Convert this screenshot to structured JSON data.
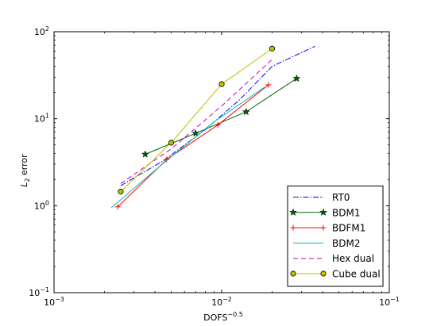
{
  "chart_data": {
    "type": "line",
    "xscale": "log",
    "yscale": "log",
    "xlim": [
      0.001,
      0.1
    ],
    "ylim": [
      0.1,
      100
    ],
    "xticks": [
      {
        "value": 0.001,
        "base": "10",
        "exp": "−3"
      },
      {
        "value": 0.01,
        "base": "10",
        "exp": "−2"
      },
      {
        "value": 0.1,
        "base": "10",
        "exp": "−1"
      }
    ],
    "yticks": [
      {
        "value": 0.1,
        "base": "10",
        "exp": "−1"
      },
      {
        "value": 1,
        "base": "10",
        "exp": "0"
      },
      {
        "value": 10,
        "base": "10",
        "exp": "1"
      },
      {
        "value": 100,
        "base": "10",
        "exp": "2"
      }
    ],
    "xlabel": {
      "base": "DOFS",
      "sup": "−0.5"
    },
    "ylabel": {
      "main": "L",
      "sub": "2",
      "rest": " error"
    },
    "grid": false,
    "legend_position": "lower-right",
    "series": [
      {
        "name": "RT0",
        "color": "#0000ff",
        "dash": "7,2,1.5,2",
        "marker": "none",
        "x": [
          0.0025,
          0.0045,
          0.008,
          0.013,
          0.02,
          0.036
        ],
        "y": [
          1.7,
          3.3,
          7.5,
          17,
          40,
          68
        ]
      },
      {
        "name": "BDM1",
        "color": "#006400",
        "dash": "",
        "marker": "star",
        "x": [
          0.0035,
          0.007,
          0.014,
          0.028
        ],
        "y": [
          3.9,
          6.8,
          12,
          29
        ]
      },
      {
        "name": "BDFM1",
        "color": "#ff0000",
        "dash": "",
        "marker": "plus",
        "x": [
          0.0024,
          0.0047,
          0.0095,
          0.019
        ],
        "y": [
          0.97,
          3.4,
          8.5,
          24.5
        ]
      },
      {
        "name": "BDM2",
        "color": "#00bfbf",
        "dash": "",
        "marker": "none",
        "x": [
          0.0022,
          0.0045,
          0.009,
          0.018
        ],
        "y": [
          0.95,
          3.1,
          9.2,
          23
        ]
      },
      {
        "name": "Hex dual",
        "color": "#bf00bf",
        "dash": "6,4",
        "marker": "none",
        "x": [
          0.0025,
          0.005,
          0.01,
          0.02
        ],
        "y": [
          1.8,
          4.5,
          14,
          48
        ]
      },
      {
        "name": "Cube dual",
        "color": "#bfbf00",
        "dash": "",
        "marker": "circle",
        "x": [
          0.0025,
          0.005,
          0.01,
          0.02
        ],
        "y": [
          1.45,
          5.3,
          25,
          64
        ]
      }
    ]
  }
}
